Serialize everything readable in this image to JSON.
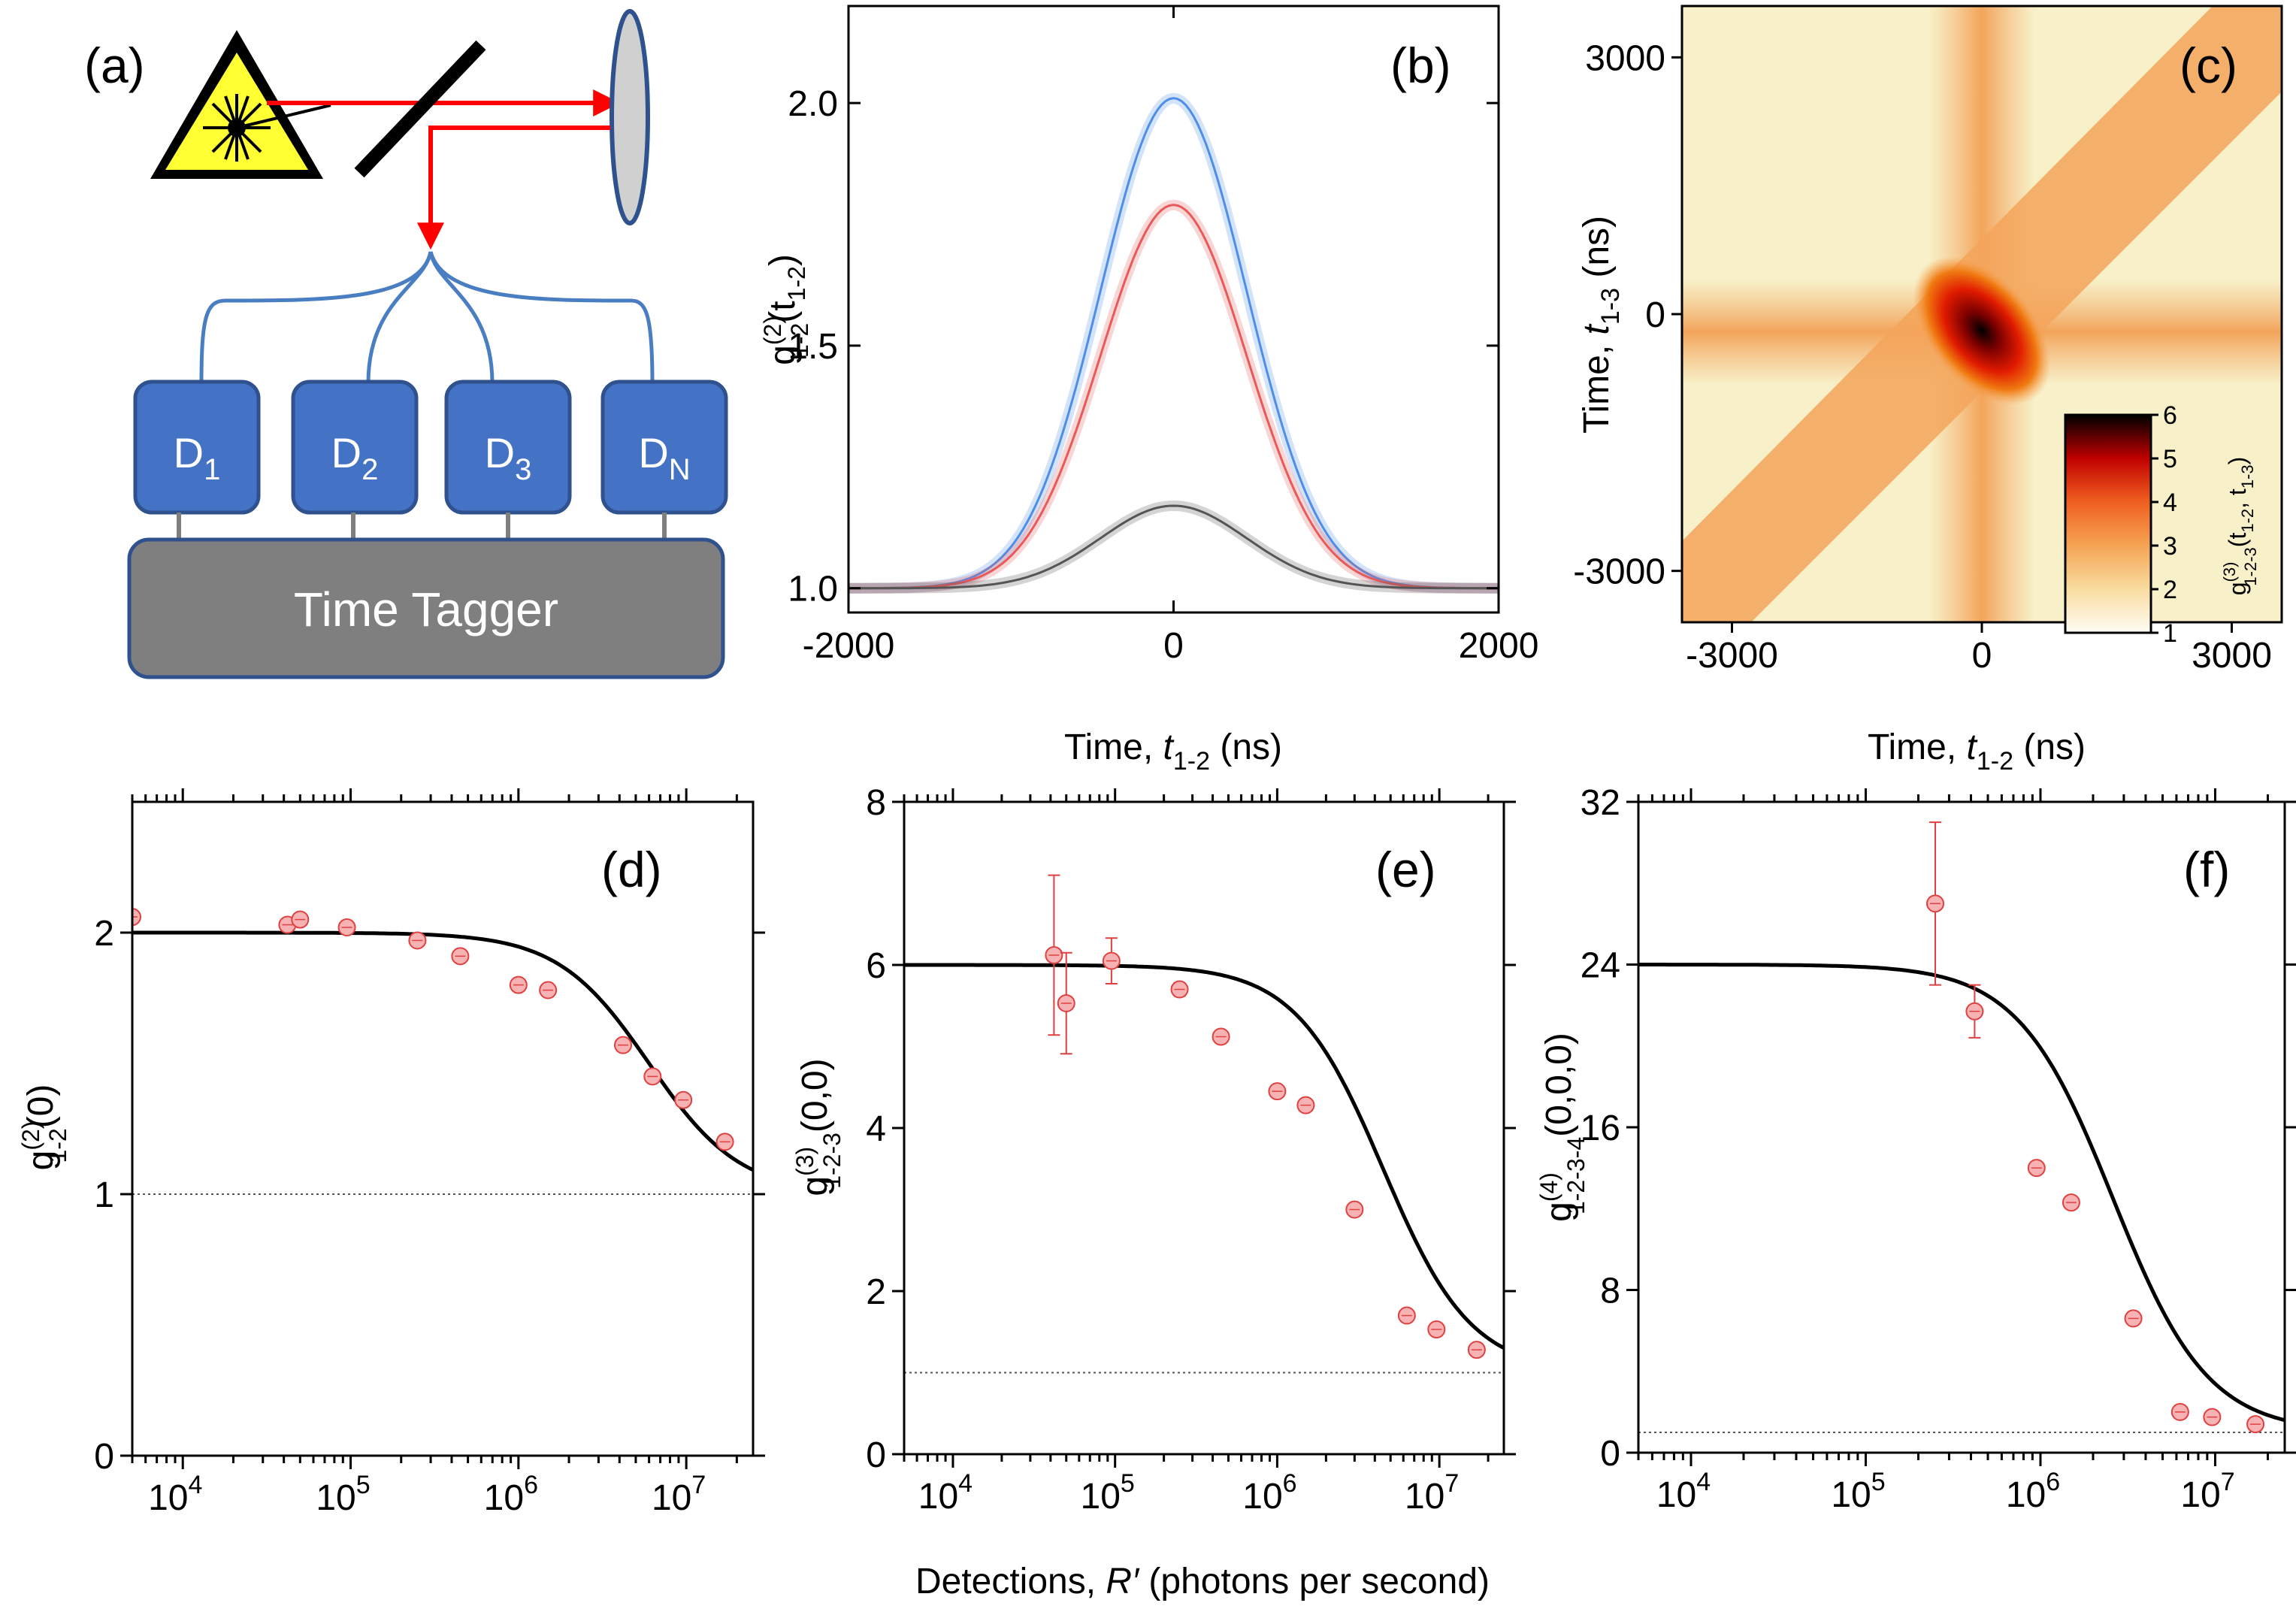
{
  "colors": {
    "fit": "#000000",
    "marker_fill": "#f7b3b3",
    "marker_edge": "#e04040",
    "blue_curve": "#4f8ee8",
    "red_curve": "#e85a5a",
    "gray_curve": "#555555",
    "laser_line": "#ff0000",
    "fiber": "#4a7ec2",
    "detector_fill": "#4472c4",
    "detector_edge": "#2f528f",
    "tagger_fill": "#7f7f7f",
    "heatmap_bg": "#f8f0c8"
  },
  "panel_a": {
    "label": "(a)",
    "detectors": [
      {
        "base": "D",
        "sub": "1"
      },
      {
        "base": "D",
        "sub": "2"
      },
      {
        "base": "D",
        "sub": "3"
      },
      {
        "base": "D",
        "sub": "N"
      }
    ],
    "tagger_label": "Time Tagger",
    "icons": [
      "laser-warning-icon",
      "beamsplitter-icon",
      "lens-icon"
    ]
  },
  "panel_b": {
    "label": "(b)",
    "ylabel": {
      "base": "g",
      "sup": "(2)",
      "sub": "1-2",
      "arg": "(t",
      "arg_sub": "1-2",
      "close": ")"
    },
    "xlabel": {
      "pre": "Time, ",
      "var": "t",
      "sub": "1-2",
      "post": " (ns)"
    },
    "xticks": [
      "-2000",
      "0",
      "2000"
    ],
    "yticks": [
      "1.0",
      "1.5",
      "2.0"
    ]
  },
  "panel_c": {
    "label": "(c)",
    "ylabel": {
      "pre": "Time, ",
      "var": "t",
      "sub": "1-3",
      "post": " (ns)"
    },
    "xlabel": {
      "pre": "Time, ",
      "var": "t",
      "sub": "1-2",
      "post": " (ns)"
    },
    "xticks": [
      "-3000",
      "0",
      "3000"
    ],
    "yticks": [
      "3000",
      "0",
      "-3000"
    ],
    "colorbar_ticks": [
      "6",
      "5",
      "4",
      "3",
      "2",
      "1"
    ],
    "colorbar_label": {
      "base": "g",
      "sup": "(3)",
      "sub": "1-2-3",
      "arg": "(t",
      "s1": "1-2",
      "mid": ", t",
      "s2": "1-3",
      "close": ")"
    }
  },
  "panel_d": {
    "label": "(d)",
    "ylabel": {
      "base": "g",
      "sup": "(2)",
      "sub": "1-2",
      "arg": "(0)"
    },
    "yticks": [
      "0",
      "1",
      "2"
    ],
    "xticks": [
      {
        "b": "10",
        "e": "4"
      },
      {
        "b": "10",
        "e": "5"
      },
      {
        "b": "10",
        "e": "6"
      },
      {
        "b": "10",
        "e": "7"
      }
    ]
  },
  "panel_e": {
    "label": "(e)",
    "ylabel": {
      "base": "g",
      "sup": "(3)",
      "sub": "1-2-3",
      "arg": "(0,0)"
    },
    "yticks": [
      "0",
      "2",
      "4",
      "6",
      "8"
    ],
    "xticks": [
      {
        "b": "10",
        "e": "4"
      },
      {
        "b": "10",
        "e": "5"
      },
      {
        "b": "10",
        "e": "6"
      },
      {
        "b": "10",
        "e": "7"
      }
    ]
  },
  "panel_f": {
    "label": "(f)",
    "ylabel": {
      "base": "g",
      "sup": "(4)",
      "sub": "1-2-3-4",
      "arg": "(0,0,0)"
    },
    "yticks": [
      "0",
      "8",
      "16",
      "24",
      "32"
    ],
    "xticks": [
      {
        "b": "10",
        "e": "4"
      },
      {
        "b": "10",
        "e": "5"
      },
      {
        "b": "10",
        "e": "6"
      },
      {
        "b": "10",
        "e": "7"
      }
    ]
  },
  "shared_xlabel": {
    "pre": "Detections, ",
    "var": "R′",
    "post": " (photons per second)"
  },
  "chart_data": [
    {
      "panel": "b",
      "type": "line",
      "xlim": [
        -2000,
        2000
      ],
      "ylim": [
        0.95,
        2.2
      ],
      "series": [
        {
          "color": "blue",
          "peak": 2.01,
          "baseline": 1.0,
          "sigma_ns": 450
        },
        {
          "color": "red",
          "peak": 1.79,
          "baseline": 1.0,
          "sigma_ns": 450
        },
        {
          "color": "gray",
          "peak": 1.17,
          "baseline": 1.0,
          "sigma_ns": 450
        }
      ]
    },
    {
      "panel": "c",
      "type": "heatmap",
      "xlim": [
        -3600,
        3600
      ],
      "ylim": [
        -3600,
        3600
      ],
      "color_range": [
        1,
        6
      ],
      "peak": 6,
      "features": [
        "horizontal band t1-3=0",
        "vertical band t1-2=0",
        "diagonal band t1-2=t1-3"
      ]
    },
    {
      "panel": "d",
      "type": "scatter",
      "xscale": "log",
      "xlim": [
        5000,
        25000000
      ],
      "ylim": [
        0,
        2.5
      ],
      "reference_line": 1,
      "points": [
        {
          "x": 5000,
          "y": 2.06
        },
        {
          "x": 42000,
          "y": 2.03
        },
        {
          "x": 50000,
          "y": 2.05
        },
        {
          "x": 95000,
          "y": 2.02
        },
        {
          "x": 250000,
          "y": 1.97
        },
        {
          "x": 450000,
          "y": 1.91
        },
        {
          "x": 1000000,
          "y": 1.8
        },
        {
          "x": 1500000,
          "y": 1.78
        },
        {
          "x": 4200000,
          "y": 1.57
        },
        {
          "x": 6300000,
          "y": 1.45
        },
        {
          "x": 9600000,
          "y": 1.36
        },
        {
          "x": 17000000,
          "y": 1.2
        }
      ],
      "fit": {
        "order": 2
      }
    },
    {
      "panel": "e",
      "type": "scatter",
      "xscale": "log",
      "xlim": [
        5000,
        25000000
      ],
      "ylim": [
        0,
        8
      ],
      "reference_line": 1,
      "points": [
        {
          "x": 42000,
          "y": 6.12,
          "err": 0.98
        },
        {
          "x": 50000,
          "y": 5.53,
          "err": 0.62
        },
        {
          "x": 95000,
          "y": 6.05,
          "err": 0.28
        },
        {
          "x": 250000,
          "y": 5.7,
          "err": 0.08
        },
        {
          "x": 450000,
          "y": 5.12,
          "err": 0.05
        },
        {
          "x": 1000000,
          "y": 4.45,
          "err": 0.05
        },
        {
          "x": 1500000,
          "y": 4.28,
          "err": 0.05
        },
        {
          "x": 3000000,
          "y": 3.0,
          "err": 0.05
        },
        {
          "x": 6300000,
          "y": 1.7,
          "err": 0.05
        },
        {
          "x": 9600000,
          "y": 1.53,
          "err": 0.05
        },
        {
          "x": 17000000,
          "y": 1.28,
          "err": 0.05
        }
      ],
      "fit": {
        "order": 3
      }
    },
    {
      "panel": "f",
      "type": "scatter",
      "xscale": "log",
      "xlim": [
        5000,
        25000000
      ],
      "ylim": [
        0,
        32
      ],
      "reference_line": 1,
      "points": [
        {
          "x": 250000,
          "y": 27.0,
          "err": 4.0
        },
        {
          "x": 420000,
          "y": 21.7,
          "err": 1.3
        },
        {
          "x": 950000,
          "y": 14.0,
          "err": 0.25
        },
        {
          "x": 1500000,
          "y": 12.3,
          "err": 0.3
        },
        {
          "x": 3400000,
          "y": 6.6,
          "err": 0.3
        },
        {
          "x": 6300000,
          "y": 2.0,
          "err": 0.2
        },
        {
          "x": 9600000,
          "y": 1.75,
          "err": 0.2
        },
        {
          "x": 17000000,
          "y": 1.4,
          "err": 0.15
        }
      ],
      "fit": {
        "order": 4
      }
    }
  ]
}
